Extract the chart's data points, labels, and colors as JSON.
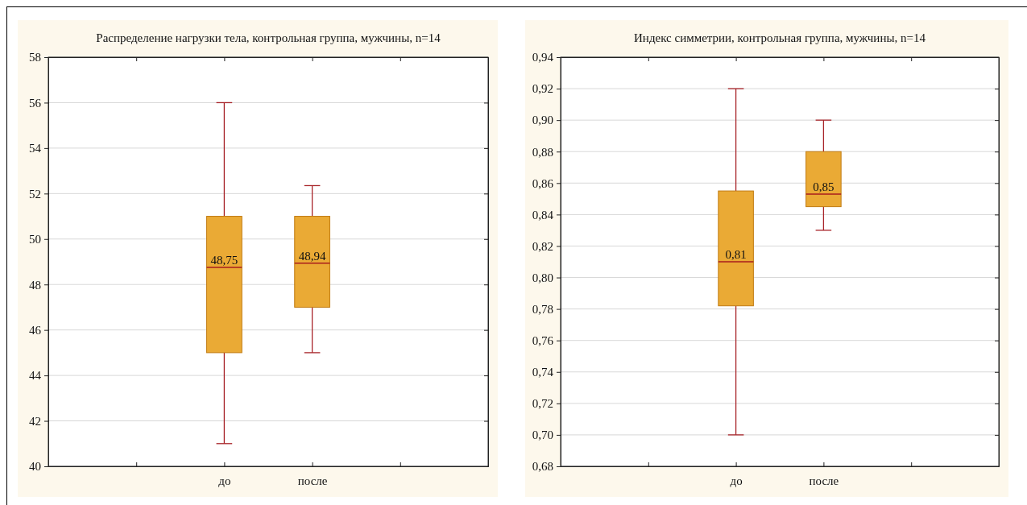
{
  "chart_data": [
    {
      "type": "box",
      "title": "Распределение нагрузки тела, контрольная группа, мужчины, n=14",
      "categories": [
        "до",
        "после"
      ],
      "color": "#eaaa35",
      "boxes": [
        {
          "low": 41,
          "q1": 45,
          "median": 48.75,
          "q3": 51,
          "high": 56
        },
        {
          "low": 45,
          "q1": 47,
          "median": 48.94,
          "q3": 51,
          "high": 52.35
        }
      ],
      "annotations": [
        "48,75",
        "48,94"
      ],
      "ylim": [
        40,
        58
      ],
      "yticks": [
        40,
        42,
        44,
        46,
        48,
        50,
        52,
        54,
        56,
        58
      ],
      "grid": "y"
    },
    {
      "type": "box",
      "title": "Индекс симметрии, контрольная группа, мужчины, n=14",
      "categories": [
        "до",
        "после"
      ],
      "color": "#eaaa35",
      "boxes": [
        {
          "low": 0.7,
          "q1": 0.782,
          "median": 0.81,
          "q3": 0.855,
          "high": 0.92
        },
        {
          "low": 0.83,
          "q1": 0.845,
          "median": 0.853,
          "q3": 0.88,
          "high": 0.9
        }
      ],
      "annotations": [
        "0,81",
        "0,85"
      ],
      "ylim": [
        0.68,
        0.94
      ],
      "yticks": [
        {
          "value": 0.68,
          "label": "0,68"
        },
        {
          "value": 0.7,
          "label": "0,70"
        },
        {
          "value": 0.72,
          "label": "0,72"
        },
        {
          "value": 0.74,
          "label": "0,74"
        },
        {
          "value": 0.76,
          "label": "0,76"
        },
        {
          "value": 0.78,
          "label": "0,78"
        },
        {
          "value": 0.8,
          "label": "0,80"
        },
        {
          "value": 0.82,
          "label": "0,82"
        },
        {
          "value": 0.84,
          "label": "0,84"
        },
        {
          "value": 0.86,
          "label": "0,86"
        },
        {
          "value": 0.88,
          "label": "0,88"
        },
        {
          "value": 0.9,
          "label": "0,90"
        },
        {
          "value": 0.92,
          "label": "0,92"
        },
        {
          "value": 0.94,
          "label": "0,94"
        }
      ],
      "grid": "y"
    }
  ]
}
